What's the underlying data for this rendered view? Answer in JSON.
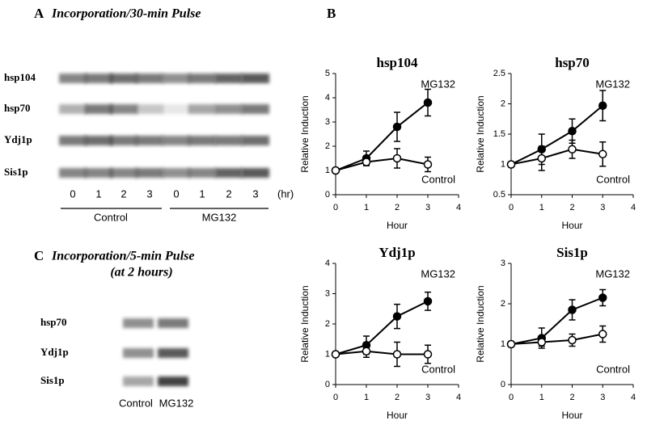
{
  "panel_a": {
    "label": "A",
    "title": "Incorporation/30-min Pulse",
    "rows": [
      "hsp104",
      "hsp70",
      "Ydj1p",
      "Sis1p"
    ],
    "lanes": [
      "0",
      "1",
      "2",
      "3",
      "0",
      "1",
      "2",
      "3"
    ],
    "unit": "(hr)",
    "groups": [
      "Control",
      "MG132"
    ]
  },
  "panel_b": {
    "label": "B"
  },
  "panel_c": {
    "label": "C",
    "title": "Incorporation/5-min Pulse",
    "subtitle": "(at 2 hours)",
    "rows": [
      "hsp70",
      "Ydj1p",
      "Sis1p"
    ],
    "lanes": [
      "Control",
      "MG132"
    ]
  },
  "chart_data": [
    {
      "type": "line",
      "title": "hsp104",
      "x_label": "Hour",
      "y_label": "Relative Induction",
      "x": [
        0,
        1,
        2,
        3
      ],
      "xlim": [
        0,
        4
      ],
      "xticks": [
        0,
        1,
        2,
        3,
        4
      ],
      "ylim": [
        0,
        5
      ],
      "yticks": [
        0,
        1,
        2,
        3,
        4,
        5
      ],
      "series": [
        {
          "name": "MG132",
          "color": "#000000",
          "marker": "filled",
          "values": [
            1,
            1.5,
            2.8,
            3.8
          ],
          "errors": [
            null,
            0.3,
            0.6,
            0.55
          ]
        },
        {
          "name": "Control",
          "color": "#000000",
          "marker": "open",
          "values": [
            1,
            1.35,
            1.5,
            1.25
          ],
          "errors": [
            null,
            0.15,
            0.4,
            0.3
          ]
        }
      ]
    },
    {
      "type": "line",
      "title": "hsp70",
      "x_label": "Hour",
      "y_label": "Relative Induction",
      "x": [
        0,
        1,
        2,
        3
      ],
      "xlim": [
        0,
        4
      ],
      "xticks": [
        0,
        1,
        2,
        3,
        4
      ],
      "ylim": [
        0.5,
        2.5
      ],
      "yticks": [
        0.5,
        1,
        1.5,
        2,
        2.5
      ],
      "series": [
        {
          "name": "MG132",
          "color": "#000000",
          "marker": "filled",
          "values": [
            1,
            1.25,
            1.55,
            1.97
          ],
          "errors": [
            null,
            0.25,
            0.2,
            0.25
          ]
        },
        {
          "name": "Control",
          "color": "#000000",
          "marker": "open",
          "values": [
            1,
            1.1,
            1.25,
            1.17
          ],
          "errors": [
            null,
            0.2,
            0.15,
            0.2
          ]
        }
      ]
    },
    {
      "type": "line",
      "title": "Ydj1p",
      "x_label": "Hour",
      "y_label": "Relative Induction",
      "x": [
        0,
        1,
        2,
        3
      ],
      "xlim": [
        0,
        4
      ],
      "xticks": [
        0,
        1,
        2,
        3,
        4
      ],
      "ylim": [
        0,
        4
      ],
      "yticks": [
        0,
        1,
        2,
        3,
        4
      ],
      "series": [
        {
          "name": "MG132",
          "color": "#000000",
          "marker": "filled",
          "values": [
            1,
            1.3,
            2.25,
            2.75
          ],
          "errors": [
            null,
            0.3,
            0.4,
            0.3
          ]
        },
        {
          "name": "Control",
          "color": "#000000",
          "marker": "open",
          "values": [
            1,
            1.1,
            1.0,
            1.0
          ],
          "errors": [
            null,
            0.2,
            0.4,
            0.3
          ]
        }
      ]
    },
    {
      "type": "line",
      "title": "Sis1p",
      "x_label": "Hour",
      "y_label": "Relative Induction",
      "x": [
        0,
        1,
        2,
        3
      ],
      "xlim": [
        0,
        4
      ],
      "xticks": [
        0,
        1,
        2,
        3,
        4
      ],
      "ylim": [
        0,
        3
      ],
      "yticks": [
        0,
        1,
        2,
        3
      ],
      "series": [
        {
          "name": "MG132",
          "color": "#000000",
          "marker": "filled",
          "values": [
            1,
            1.15,
            1.85,
            2.15
          ],
          "errors": [
            null,
            0.25,
            0.25,
            0.2
          ]
        },
        {
          "name": "Control",
          "color": "#000000",
          "marker": "open",
          "values": [
            1,
            1.05,
            1.1,
            1.25
          ],
          "errors": [
            null,
            0.1,
            0.15,
            0.2
          ]
        }
      ]
    }
  ]
}
